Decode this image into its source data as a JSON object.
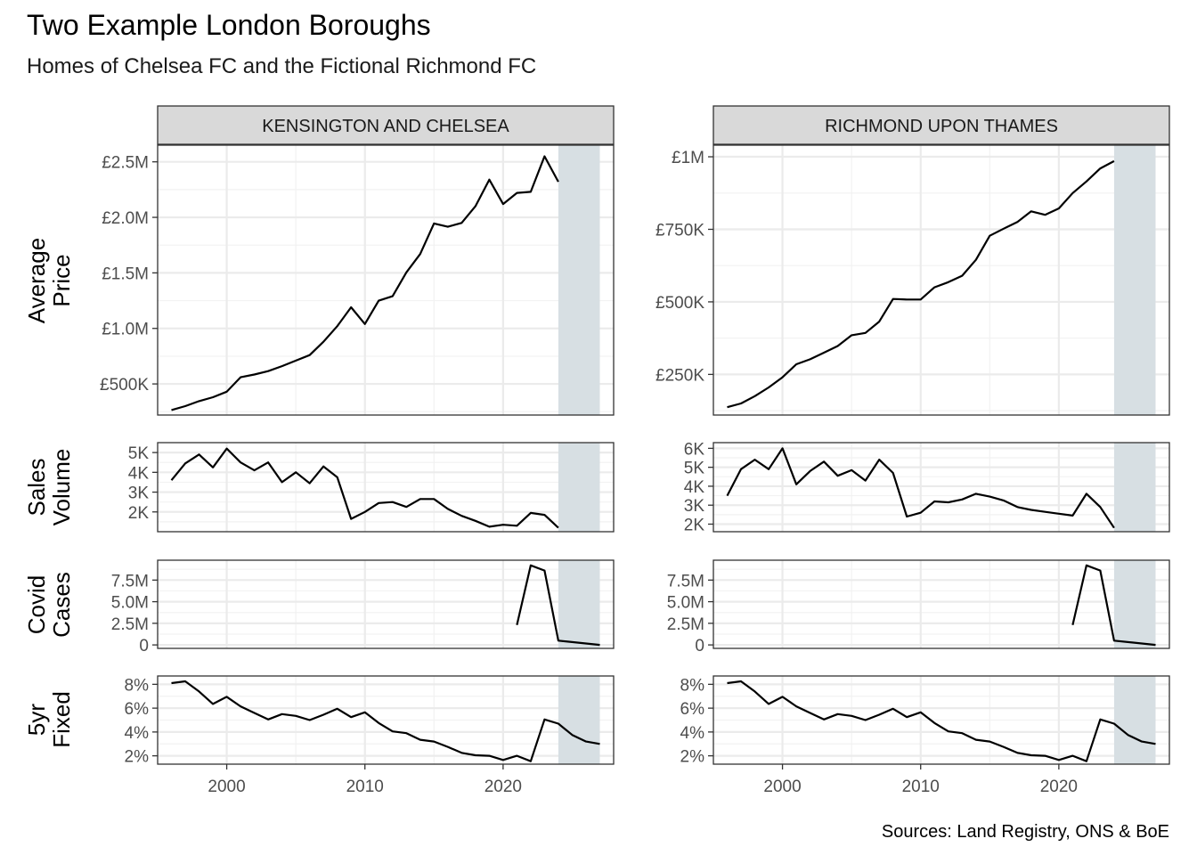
{
  "title": "Two Example London Boroughs",
  "subtitle": "Homes of Chelsea FC and the Fictional Richmond FC",
  "caption": "Sources: Land Registry, ONS & BoE",
  "colors": {
    "line": "#000000",
    "forecast_band": "#d7dfe3",
    "strip_fill": "#d9d9d9",
    "panel_border": "#333333",
    "grid_major": "#ebebeb",
    "grid_minor": "#f2f2f2"
  },
  "chart_data": {
    "type": "line",
    "facet_columns": [
      "KENSINGTON AND CHELSEA",
      "RICHMOND UPON THAMES"
    ],
    "facet_rows": [
      {
        "key": "price",
        "label": [
          "Average",
          "Price"
        ]
      },
      {
        "key": "volume",
        "label": [
          "Sales",
          "Volume"
        ]
      },
      {
        "key": "covid",
        "label": [
          "Covid",
          "Cases"
        ]
      },
      {
        "key": "rate",
        "label": [
          "5yr",
          "Fixed"
        ]
      }
    ],
    "x_axis": {
      "ticks": [
        2000,
        2010,
        2020
      ],
      "tick_labels": [
        "2000",
        "2010",
        "2020"
      ],
      "xlim": [
        1995,
        2028
      ]
    },
    "shaded_region": {
      "x": [
        2024,
        2027
      ]
    },
    "grid": "on",
    "scales": {
      "price": {
        "KENSINGTON AND CHELSEA": {
          "ylim": [
            220000,
            2650000
          ],
          "ticks": [
            500000,
            1000000,
            1500000,
            2000000,
            2500000
          ],
          "tick_labels": [
            "£500K",
            "£1.0M",
            "£1.5M",
            "£2.0M",
            "£2.5M"
          ]
        },
        "RICHMOND UPON THAMES": {
          "ylim": [
            110000,
            1040000
          ],
          "ticks": [
            250000,
            500000,
            750000,
            1000000
          ],
          "tick_labels": [
            "£250K",
            "£500K",
            "£750K",
            "£1M"
          ]
        }
      },
      "volume": {
        "KENSINGTON AND CHELSEA": {
          "ylim": [
            1000,
            5500
          ],
          "ticks": [
            2000,
            3000,
            4000,
            5000
          ],
          "tick_labels": [
            "2K",
            "3K",
            "4K",
            "5K"
          ]
        },
        "RICHMOND UPON THAMES": {
          "ylim": [
            1600,
            6300
          ],
          "ticks": [
            2000,
            3000,
            4000,
            5000,
            6000
          ],
          "tick_labels": [
            "2K",
            "3K",
            "4K",
            "5K",
            "6K"
          ]
        }
      },
      "covid": {
        "ylim": [
          -400000,
          9800000
        ],
        "ticks": [
          0,
          2500000,
          5000000,
          7500000
        ],
        "tick_labels": [
          "0",
          "2.5M",
          "5.0M",
          "7.5M"
        ]
      },
      "rate": {
        "ylim": [
          1.3,
          8.7
        ],
        "ticks": [
          2,
          4,
          6,
          8
        ],
        "tick_labels": [
          "2%",
          "4%",
          "6%",
          "8%"
        ]
      }
    },
    "series": {
      "KENSINGTON AND CHELSEA": {
        "price": {
          "x": [
            1996,
            1997,
            1998,
            1999,
            2000,
            2001,
            2002,
            2003,
            2004,
            2005,
            2006,
            2007,
            2008,
            2009,
            2010,
            2011,
            2012,
            2013,
            2014,
            2015,
            2016,
            2017,
            2018,
            2019,
            2020,
            2021,
            2022,
            2023,
            2024
          ],
          "y": [
            265000,
            300000,
            345000,
            380000,
            430000,
            560000,
            585000,
            615000,
            660000,
            710000,
            760000,
            880000,
            1020000,
            1190000,
            1040000,
            1250000,
            1290000,
            1505000,
            1670000,
            1945000,
            1915000,
            1950000,
            2100000,
            2340000,
            2120000,
            2220000,
            2230000,
            2550000,
            2320000
          ]
        },
        "volume": {
          "x": [
            1996,
            1997,
            1998,
            1999,
            2000,
            2001,
            2002,
            2003,
            2004,
            2005,
            2006,
            2007,
            2008,
            2009,
            2010,
            2011,
            2012,
            2013,
            2014,
            2015,
            2016,
            2017,
            2018,
            2019,
            2020,
            2021,
            2022,
            2023,
            2024
          ],
          "y": [
            3600,
            4450,
            4900,
            4250,
            5200,
            4500,
            4100,
            4500,
            3500,
            4000,
            3450,
            4300,
            3750,
            1650,
            2000,
            2450,
            2500,
            2250,
            2650,
            2650,
            2150,
            1800,
            1550,
            1250,
            1350,
            1300,
            1950,
            1850,
            1200
          ]
        },
        "covid": {
          "x": [
            2021,
            2022,
            2023,
            2024,
            2027
          ],
          "y": [
            2300000,
            9200000,
            8600000,
            500000,
            0
          ]
        },
        "rate": {
          "x": [
            1996,
            1997,
            1998,
            1999,
            2000,
            2001,
            2002,
            2003,
            2004,
            2005,
            2006,
            2007,
            2008,
            2009,
            2010,
            2011,
            2012,
            2013,
            2014,
            2015,
            2016,
            2017,
            2018,
            2019,
            2020,
            2021,
            2022,
            2023,
            2024,
            2025,
            2026,
            2027
          ],
          "y": [
            8.1,
            8.25,
            7.4,
            6.35,
            6.95,
            6.15,
            5.6,
            5.05,
            5.5,
            5.35,
            5.0,
            5.45,
            5.95,
            5.25,
            5.65,
            4.75,
            4.05,
            3.9,
            3.35,
            3.2,
            2.75,
            2.25,
            2.05,
            2.0,
            1.65,
            2.0,
            1.55,
            5.05,
            4.7,
            3.75,
            3.2,
            3.0
          ]
        }
      },
      "RICHMOND UPON THAMES": {
        "price": {
          "x": [
            1996,
            1997,
            1998,
            1999,
            2000,
            2001,
            2002,
            2003,
            2004,
            2005,
            2006,
            2007,
            2008,
            2009,
            2010,
            2011,
            2012,
            2013,
            2014,
            2015,
            2016,
            2017,
            2018,
            2019,
            2020,
            2021,
            2022,
            2023,
            2024
          ],
          "y": [
            137000,
            150000,
            175000,
            205000,
            240000,
            285000,
            302000,
            325000,
            348000,
            385000,
            393000,
            432000,
            510000,
            508000,
            508000,
            550000,
            568000,
            590000,
            645000,
            728000,
            752000,
            775000,
            812000,
            800000,
            822000,
            875000,
            915000,
            960000,
            985000
          ]
        },
        "volume": {
          "x": [
            1996,
            1997,
            1998,
            1999,
            2000,
            2001,
            2002,
            2003,
            2004,
            2005,
            2006,
            2007,
            2008,
            2009,
            2010,
            2011,
            2012,
            2013,
            2014,
            2015,
            2016,
            2017,
            2018,
            2019,
            2020,
            2021,
            2022,
            2023,
            2024
          ],
          "y": [
            3500,
            4900,
            5400,
            4900,
            6000,
            4100,
            4800,
            5300,
            4550,
            4850,
            4300,
            5400,
            4700,
            2400,
            2600,
            3200,
            3150,
            3300,
            3600,
            3450,
            3250,
            2900,
            2750,
            2650,
            2550,
            2450,
            3600,
            2900,
            1800
          ]
        },
        "covid": {
          "x": [
            2021,
            2022,
            2023,
            2024,
            2027
          ],
          "y": [
            2300000,
            9200000,
            8600000,
            500000,
            0
          ]
        },
        "rate": {
          "x": [
            1996,
            1997,
            1998,
            1999,
            2000,
            2001,
            2002,
            2003,
            2004,
            2005,
            2006,
            2007,
            2008,
            2009,
            2010,
            2011,
            2012,
            2013,
            2014,
            2015,
            2016,
            2017,
            2018,
            2019,
            2020,
            2021,
            2022,
            2023,
            2024,
            2025,
            2026,
            2027
          ],
          "y": [
            8.1,
            8.25,
            7.4,
            6.35,
            6.95,
            6.15,
            5.6,
            5.05,
            5.5,
            5.35,
            5.0,
            5.45,
            5.95,
            5.25,
            5.65,
            4.75,
            4.05,
            3.9,
            3.35,
            3.2,
            2.75,
            2.25,
            2.05,
            2.0,
            1.65,
            2.0,
            1.55,
            5.05,
            4.7,
            3.75,
            3.2,
            3.0
          ]
        }
      }
    }
  }
}
